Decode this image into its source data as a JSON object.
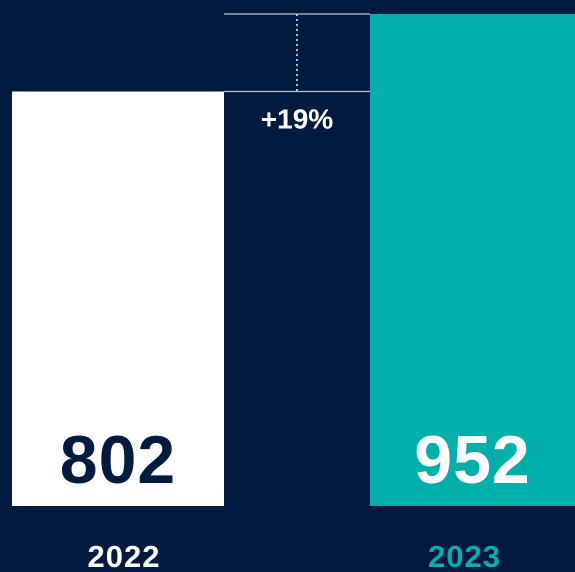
{
  "chart_data": {
    "type": "bar",
    "categories": [
      "2022",
      "2023"
    ],
    "values": [
      802,
      952
    ],
    "colors": [
      "#ffffff",
      "#00aeaa"
    ],
    "annotation": "+19%"
  }
}
